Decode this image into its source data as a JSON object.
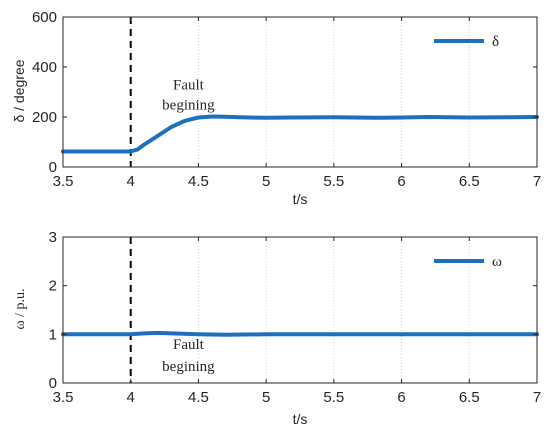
{
  "chart_data": [
    {
      "type": "line",
      "xlabel": "t/s",
      "ylabel": "δ / degree",
      "xlim": [
        3.5,
        7
      ],
      "ylim": [
        0,
        600
      ],
      "xticks": [
        "3.5",
        "4",
        "4.5",
        "5",
        "5.5",
        "6",
        "6.5",
        "7"
      ],
      "yticks": [
        "0",
        "200",
        "400",
        "600"
      ],
      "grid": "vertical dotted",
      "legend_position": "top-right",
      "series": [
        {
          "name": "δ",
          "color": "#1f6fbf",
          "x": [
            3.5,
            3.9,
            4.0,
            4.05,
            4.1,
            4.2,
            4.3,
            4.4,
            4.5,
            4.6,
            4.7,
            4.8,
            5.0,
            5.2,
            5.5,
            5.8,
            6.0,
            6.2,
            6.5,
            6.8,
            7.0
          ],
          "y": [
            62,
            62,
            62,
            70,
            90,
            125,
            160,
            185,
            198,
            202,
            201,
            199,
            197,
            198,
            199,
            197,
            198,
            200,
            198,
            199,
            200
          ]
        }
      ],
      "vline": {
        "x": 4.0,
        "style": "dashed"
      },
      "annotation": {
        "line1": "Fault",
        "line2": "begining",
        "x": 4.5,
        "y1": 310,
        "y2": 230
      }
    },
    {
      "type": "line",
      "xlabel": "t/s",
      "ylabel": "ω / p.u.",
      "xlim": [
        3.5,
        7
      ],
      "ylim": [
        0,
        3
      ],
      "xticks": [
        "3.5",
        "4",
        "4.5",
        "5",
        "5.5",
        "6",
        "6.5",
        "7"
      ],
      "yticks": [
        "0",
        "1",
        "2",
        "3"
      ],
      "grid": "vertical dotted",
      "legend_position": "top-right",
      "series": [
        {
          "name": "ω",
          "color": "#1f6fbf",
          "x": [
            3.5,
            4.0,
            4.1,
            4.2,
            4.3,
            4.5,
            4.7,
            5.0,
            5.5,
            6.0,
            6.5,
            7.0
          ],
          "y": [
            1.0,
            1.0,
            1.02,
            1.03,
            1.02,
            1.0,
            0.99,
            1.0,
            1.0,
            1.0,
            1.0,
            1.0
          ]
        }
      ],
      "vline": {
        "x": 4.0,
        "style": "dashed"
      },
      "annotation": {
        "line1": "Fault",
        "line2": "begining",
        "x": 4.5,
        "y1": 0.7,
        "y2": 0.25
      }
    }
  ]
}
